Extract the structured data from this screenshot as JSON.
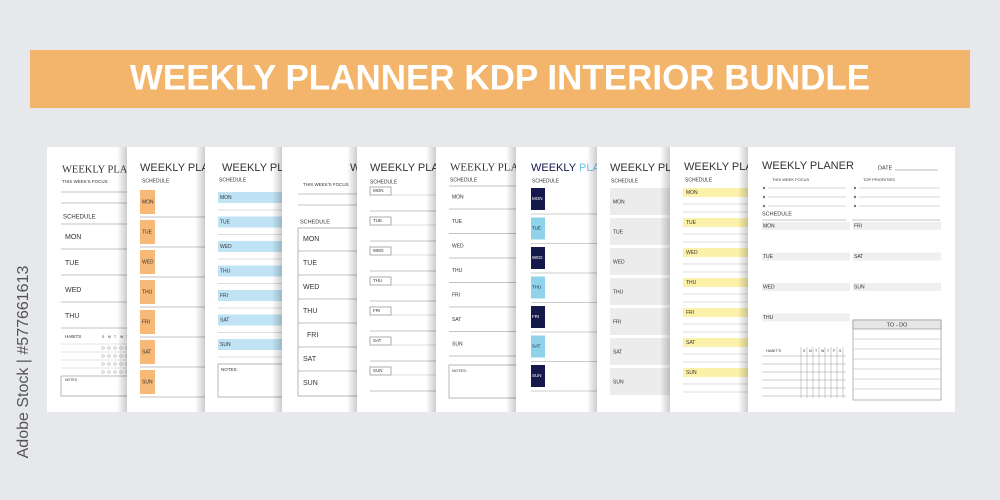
{
  "banner": {
    "title": "WEEKLY PLANNER KDP INTERIOR BUNDLE"
  },
  "watermark": "Adobe Stock | #577661613",
  "days": [
    "MON",
    "TUE",
    "WED",
    "THU",
    "FRI",
    "SAT",
    "SUN"
  ],
  "habit_days": [
    "S",
    "M",
    "T",
    "W",
    "T",
    "F",
    "S"
  ],
  "pages": [
    {
      "title": "WEEKLY PLAN",
      "focus": "THIS WEEK'S FOCUS",
      "schedule": "SCHEDULE",
      "habits": "HABITS",
      "notes": "NOTES"
    },
    {
      "title": "WEEKLY PLAN",
      "schedule": "SCHEDULE"
    },
    {
      "title": "WEEKLY PLAN",
      "schedule": "SCHEDULE",
      "notes": "NOTES:"
    },
    {
      "title": "WEEKLY PLAN",
      "focus": "THIS WEEK'S FOCUS",
      "schedule": "SCHEDULE"
    },
    {
      "title": "WEEKLY PLAN",
      "schedule": "SCHEDULE"
    },
    {
      "title": "WEEKLY PLAN",
      "schedule": "SCHEDULE",
      "notes": "NOTES:"
    },
    {
      "title_parts": [
        "WEEKLY",
        "PLAN"
      ],
      "schedule": "SCHEDULE"
    },
    {
      "title": "WEEKLY PLAN",
      "schedule": "SCHEDULE"
    },
    {
      "title": "WEEKLY PLAN",
      "schedule": "SCHEDULE"
    },
    {
      "title": "WEEKLY PLANER",
      "date": "DATE",
      "focus": "THIS WEEK FOCUS",
      "priorities": "TOP PRIORITIES",
      "schedule": "SCHEDULE",
      "habits": "HABIT'S",
      "todo": "TO - DO"
    }
  ]
}
